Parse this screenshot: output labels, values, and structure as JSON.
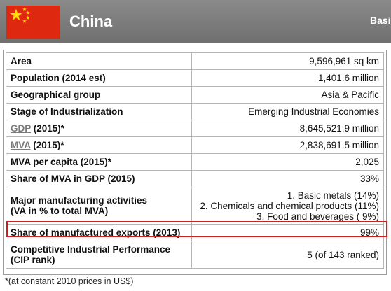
{
  "header": {
    "country": "China",
    "tab_label": "Basi",
    "colors": {
      "bar": "#7c7c7c",
      "flag_red": "#de2910",
      "flag_star": "#ffde00",
      "highlight": "#cc2020"
    },
    "flag_icon": "china-flag-icon"
  },
  "table": {
    "rows": [
      {
        "label": "Area",
        "value": "9,596,961 sq km"
      },
      {
        "label": "Population (2014 est)",
        "value": "1,401.6 million"
      },
      {
        "label": "Geographical group",
        "value": "Asia & Pacific"
      },
      {
        "label": "Stage of Industrialization",
        "value": "Emerging Industrial Economies"
      },
      {
        "label_abbr": "GDP",
        "label_rest": " (2015)*",
        "value": "8,645,521.9 million"
      },
      {
        "label_abbr": "MVA",
        "label_rest": " (2015)*",
        "value": "2,838,691.5 million"
      },
      {
        "label": "MVA per capita (2015)*",
        "value": "2,025"
      },
      {
        "label": "Share of MVA in GDP (2015)",
        "value": "33%",
        "highlighted": true
      },
      {
        "label_line1": "Major manufacturing activities",
        "label_line2": "(VA in % to total MVA)",
        "values": [
          "1. Basic metals (14%)",
          "2. Chemicals and chemical products (11%)",
          "3. Food and beverages ( 9%)"
        ]
      },
      {
        "label": "Share of manufactured exports (2013)",
        "value": "99%"
      },
      {
        "label_line1": "Competitive Industrial Performance",
        "label_line2": "(CIP rank)",
        "value": "5 (of 143 ranked)"
      }
    ]
  },
  "footnote": "*(at constant 2010 prices in US$)"
}
